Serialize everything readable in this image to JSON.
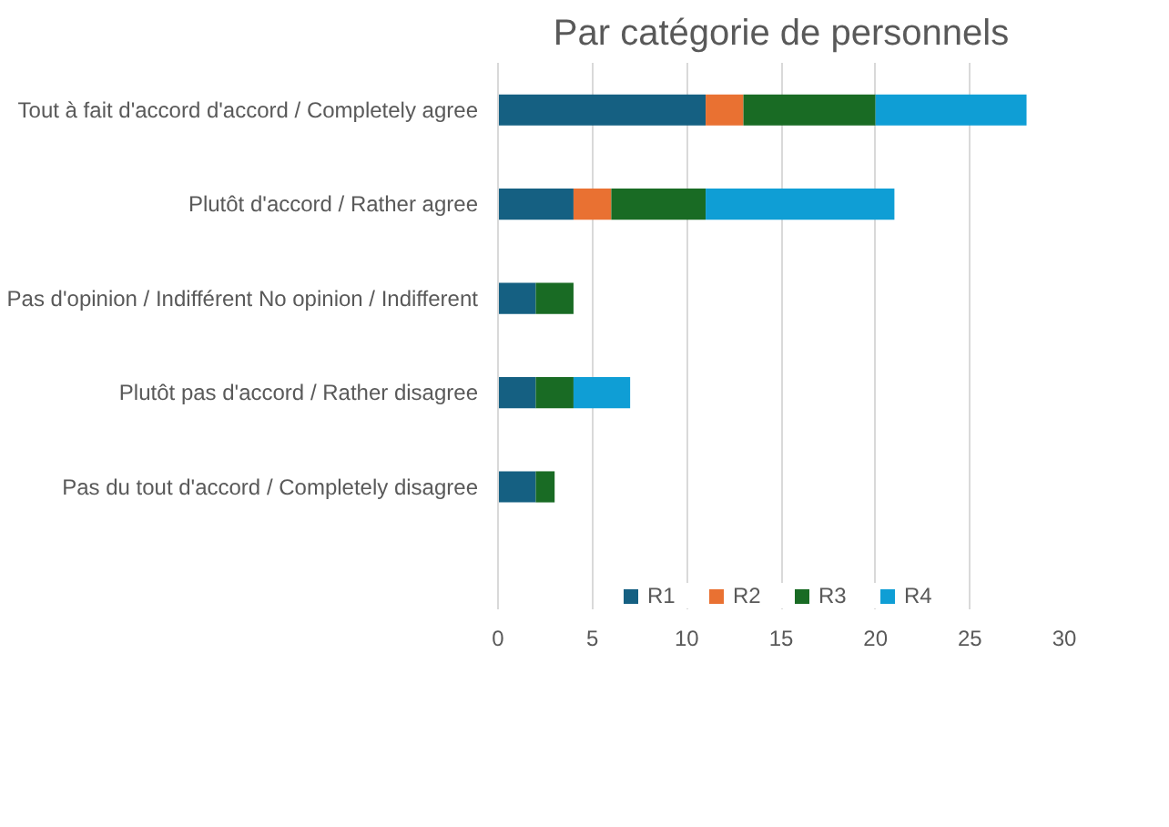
{
  "chart_data": {
    "type": "bar",
    "orientation": "horizontal",
    "stacked": true,
    "title": "Par catégorie de personnels",
    "categories": [
      "Tout à fait d'accord d'accord / Completely agree",
      "Plutôt d'accord / Rather agree",
      "Pas d'opinion / Indifférent No opinion / Indifferent",
      "Plutôt pas d'accord / Rather disagree",
      "Pas du tout d'accord / Completely disagree"
    ],
    "series": [
      {
        "name": "R1",
        "color": "#156082",
        "values": [
          11,
          4,
          2,
          2,
          2
        ]
      },
      {
        "name": "R2",
        "color": "#e97132",
        "values": [
          2,
          2,
          0,
          0,
          0
        ]
      },
      {
        "name": "R3",
        "color": "#196b24",
        "values": [
          7,
          5,
          2,
          2,
          1
        ]
      },
      {
        "name": "R4",
        "color": "#0f9ed5",
        "values": [
          8,
          10,
          0,
          3,
          0
        ]
      }
    ],
    "xlim": [
      0,
      30
    ],
    "xticks": [
      0,
      5,
      10,
      15,
      20,
      25,
      30
    ],
    "grid": "x",
    "legend": "bottom"
  }
}
